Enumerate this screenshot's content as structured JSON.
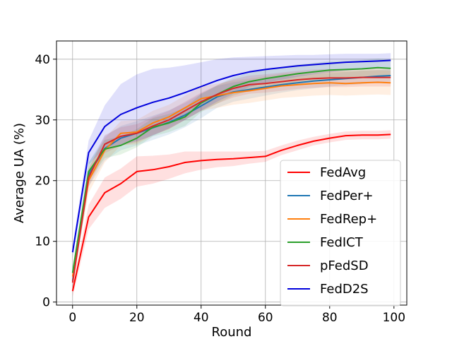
{
  "chart_data": {
    "type": "line",
    "title": "",
    "xlabel": "Round",
    "ylabel": "Average UA (%)",
    "xlim": [
      -5,
      104
    ],
    "ylim": [
      -0.5,
      43
    ],
    "xticks": [
      0,
      20,
      40,
      60,
      80,
      100
    ],
    "yticks": [
      0,
      10,
      20,
      30,
      40
    ],
    "grid": true,
    "legend_position": "lower-right",
    "x": [
      0,
      5,
      10,
      15,
      20,
      25,
      30,
      35,
      40,
      45,
      50,
      55,
      60,
      65,
      70,
      75,
      80,
      85,
      90,
      95,
      99
    ],
    "series": [
      {
        "name": "FedAvg",
        "color": "#ff0000",
        "values": [
          1.8,
          14.0,
          18.0,
          19.5,
          21.5,
          21.8,
          22.3,
          23.0,
          23.3,
          23.5,
          23.6,
          23.8,
          24.0,
          25.0,
          25.8,
          26.5,
          27.0,
          27.4,
          27.5,
          27.5,
          27.6
        ],
        "band": [
          1.0,
          2.0,
          2.5,
          2.5,
          2.5,
          2.3,
          2.0,
          1.8,
          1.5,
          1.3,
          1.2,
          1.0,
          0.9,
          0.8,
          0.8,
          0.7,
          0.7,
          0.7,
          0.7,
          0.7,
          0.7
        ]
      },
      {
        "name": "FedPer+",
        "color": "#1f77b4",
        "values": [
          3.5,
          21.0,
          25.3,
          27.0,
          27.8,
          28.7,
          29.6,
          30.8,
          32.3,
          33.8,
          34.6,
          35.0,
          35.4,
          35.8,
          36.1,
          36.4,
          36.6,
          36.8,
          37.0,
          37.2,
          37.3
        ],
        "band": [
          1.0,
          2.0,
          2.0,
          2.0,
          2.0,
          2.0,
          2.0,
          2.0,
          2.0,
          1.8,
          1.6,
          1.5,
          1.4,
          1.3,
          1.2,
          1.2,
          1.1,
          1.1,
          1.1,
          1.0,
          1.0
        ]
      },
      {
        "name": "FedRep+",
        "color": "#ff7f0e",
        "values": [
          4.2,
          20.0,
          25.0,
          27.8,
          28.0,
          29.5,
          30.5,
          32.0,
          33.5,
          34.0,
          34.5,
          34.8,
          35.2,
          35.6,
          35.8,
          36.0,
          36.1,
          36.0,
          36.1,
          36.2,
          36.1
        ],
        "band": [
          1.0,
          2.0,
          2.0,
          2.0,
          2.0,
          2.0,
          2.0,
          2.0,
          2.0,
          2.0,
          2.0,
          2.0,
          2.0,
          2.0,
          2.0,
          2.0,
          2.0,
          2.0,
          2.0,
          2.0,
          2.0
        ]
      },
      {
        "name": "FedICT",
        "color": "#2ca02c",
        "values": [
          4.8,
          21.5,
          25.2,
          25.8,
          27.0,
          28.8,
          29.5,
          30.5,
          32.8,
          34.2,
          35.5,
          36.3,
          36.8,
          37.2,
          37.6,
          37.9,
          38.2,
          38.3,
          38.4,
          38.6,
          38.5
        ],
        "band": [
          1.0,
          1.5,
          1.5,
          1.5,
          1.5,
          1.5,
          1.5,
          1.5,
          1.5,
          1.5,
          1.5,
          1.5,
          1.5,
          1.5,
          1.5,
          1.5,
          1.5,
          1.5,
          1.5,
          1.5,
          1.5
        ]
      },
      {
        "name": "pFedSD",
        "color": "#d62728",
        "values": [
          3.2,
          20.5,
          26.0,
          27.3,
          27.8,
          29.0,
          30.0,
          31.5,
          33.0,
          34.2,
          35.2,
          35.8,
          36.0,
          36.3,
          36.6,
          36.8,
          36.9,
          36.9,
          37.0,
          37.0,
          37.0
        ],
        "band": [
          1.0,
          1.5,
          1.5,
          1.5,
          1.5,
          1.5,
          1.5,
          1.5,
          1.5,
          1.5,
          1.5,
          1.5,
          1.5,
          1.5,
          1.5,
          1.5,
          1.5,
          1.5,
          1.5,
          1.5,
          1.5
        ]
      },
      {
        "name": "FedD2S",
        "color": "#0000dd",
        "values": [
          8.2,
          24.6,
          28.9,
          30.9,
          32.0,
          32.9,
          33.6,
          34.5,
          35.5,
          36.5,
          37.3,
          37.9,
          38.3,
          38.6,
          38.9,
          39.1,
          39.3,
          39.5,
          39.6,
          39.7,
          39.8
        ],
        "band": [
          1.0,
          2.0,
          3.5,
          5.0,
          5.5,
          5.5,
          5.0,
          4.5,
          4.0,
          3.5,
          3.0,
          2.5,
          2.2,
          2.0,
          1.8,
          1.6,
          1.5,
          1.4,
          1.3,
          1.2,
          1.2
        ]
      }
    ]
  }
}
